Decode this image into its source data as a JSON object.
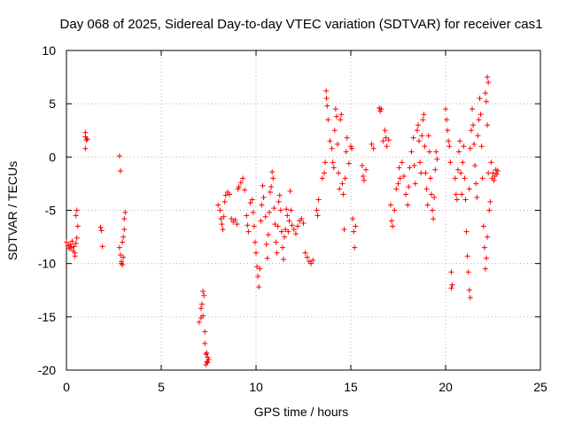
{
  "chart_data": {
    "type": "scatter",
    "title": "Day 068 of 2025, Sidereal Day-to-day VTEC variation (SDTVAR) for receiver cas1",
    "xlabel": "GPS time / hours",
    "ylabel": "SDTVAR / TECUs",
    "xlim": [
      0,
      25
    ],
    "ylim": [
      -20,
      10
    ],
    "xticks": [
      0,
      5,
      10,
      15,
      20,
      25
    ],
    "yticks": [
      -20,
      -15,
      -10,
      -5,
      0,
      5,
      10
    ],
    "grid": true,
    "marker": "+",
    "marker_color": "#ff0000",
    "series": [
      {
        "name": "cas1",
        "points": [
          [
            0.0,
            -8.0
          ],
          [
            0.1,
            -8.3
          ],
          [
            0.15,
            -8.6
          ],
          [
            0.2,
            -8.2
          ],
          [
            0.25,
            -8.5
          ],
          [
            0.3,
            -7.9
          ],
          [
            0.35,
            -8.8
          ],
          [
            0.4,
            -8.4
          ],
          [
            0.45,
            -9.0
          ],
          [
            0.5,
            -8.1
          ],
          [
            0.55,
            -7.6
          ],
          [
            0.6,
            -6.5
          ],
          [
            0.5,
            -5.5
          ],
          [
            0.55,
            -5.0
          ],
          [
            0.45,
            -9.3
          ],
          [
            1.0,
            2.3
          ],
          [
            1.0,
            1.9
          ],
          [
            1.05,
            1.6
          ],
          [
            1.0,
            0.8
          ],
          [
            1.1,
            1.7
          ],
          [
            1.8,
            -6.6
          ],
          [
            1.85,
            -6.9
          ],
          [
            1.9,
            -8.4
          ],
          [
            2.8,
            0.1
          ],
          [
            2.85,
            -1.3
          ],
          [
            2.8,
            -8.5
          ],
          [
            2.85,
            -9.2
          ],
          [
            2.9,
            -9.8
          ],
          [
            2.95,
            -10.1
          ],
          [
            3.0,
            -9.4
          ],
          [
            2.95,
            -8.0
          ],
          [
            3.0,
            -7.5
          ],
          [
            3.05,
            -6.8
          ],
          [
            3.1,
            -5.2
          ],
          [
            3.05,
            -5.8
          ],
          [
            2.9,
            -10.0
          ],
          [
            7.0,
            -15.5
          ],
          [
            7.1,
            -14.2
          ],
          [
            7.15,
            -13.8
          ],
          [
            7.2,
            -12.6
          ],
          [
            7.25,
            -13.0
          ],
          [
            7.2,
            -14.9
          ],
          [
            7.1,
            -15.1
          ],
          [
            7.3,
            -16.4
          ],
          [
            7.3,
            -17.5
          ],
          [
            7.35,
            -18.5
          ],
          [
            7.4,
            -19.2
          ],
          [
            7.45,
            -18.8
          ],
          [
            7.5,
            -19.0
          ],
          [
            7.4,
            -18.4
          ],
          [
            7.35,
            -19.5
          ],
          [
            7.45,
            -19.3
          ],
          [
            8.0,
            -4.5
          ],
          [
            8.1,
            -5.0
          ],
          [
            8.15,
            -5.8
          ],
          [
            8.2,
            -6.3
          ],
          [
            8.25,
            -6.8
          ],
          [
            8.3,
            -5.6
          ],
          [
            8.35,
            -4.2
          ],
          [
            8.4,
            -3.6
          ],
          [
            8.5,
            -3.3
          ],
          [
            8.6,
            -3.5
          ],
          [
            8.7,
            -5.8
          ],
          [
            8.8,
            -6.1
          ],
          [
            8.9,
            -5.9
          ],
          [
            9.0,
            -6.3
          ],
          [
            9.05,
            -3.0
          ],
          [
            9.1,
            -2.8
          ],
          [
            9.2,
            -2.4
          ],
          [
            9.3,
            -2.0
          ],
          [
            9.4,
            -3.1
          ],
          [
            9.5,
            -5.5
          ],
          [
            9.55,
            -6.4
          ],
          [
            9.6,
            -7.0
          ],
          [
            9.7,
            -4.3
          ],
          [
            9.8,
            -4.0
          ],
          [
            9.85,
            -5.2
          ],
          [
            9.9,
            -6.5
          ],
          [
            9.95,
            -8.0
          ],
          [
            10.0,
            -9.0
          ],
          [
            10.05,
            -10.3
          ],
          [
            10.1,
            -11.2
          ],
          [
            10.15,
            -12.2
          ],
          [
            10.2,
            -10.5
          ],
          [
            10.25,
            -6.0
          ],
          [
            10.3,
            -4.5
          ],
          [
            10.35,
            -2.7
          ],
          [
            10.4,
            -3.8
          ],
          [
            10.5,
            -5.6
          ],
          [
            10.55,
            -8.2
          ],
          [
            10.6,
            -9.5
          ],
          [
            10.65,
            -7.3
          ],
          [
            10.7,
            -5.2
          ],
          [
            10.75,
            -3.3
          ],
          [
            10.8,
            -2.8
          ],
          [
            10.85,
            -1.4
          ],
          [
            10.9,
            -2.0
          ],
          [
            10.95,
            -4.8
          ],
          [
            11.0,
            -6.3
          ],
          [
            11.05,
            -8.0
          ],
          [
            11.1,
            -9.0
          ],
          [
            11.15,
            -6.5
          ],
          [
            11.2,
            -4.2
          ],
          [
            11.25,
            -3.6
          ],
          [
            11.3,
            -5.0
          ],
          [
            11.35,
            -7.0
          ],
          [
            11.4,
            -8.5
          ],
          [
            11.45,
            -9.6
          ],
          [
            11.5,
            -7.5
          ],
          [
            11.55,
            -6.8
          ],
          [
            11.6,
            -4.9
          ],
          [
            11.65,
            -5.5
          ],
          [
            11.7,
            -7.0
          ],
          [
            11.75,
            -6.0
          ],
          [
            11.8,
            -3.2
          ],
          [
            11.85,
            -5.0
          ],
          [
            11.9,
            -6.4
          ],
          [
            12.0,
            -6.8
          ],
          [
            12.1,
            -7.2
          ],
          [
            12.2,
            -6.5
          ],
          [
            12.3,
            -6.0
          ],
          [
            12.4,
            -5.8
          ],
          [
            12.5,
            -6.2
          ],
          [
            12.6,
            -9.0
          ],
          [
            12.7,
            -9.4
          ],
          [
            12.8,
            -9.8
          ],
          [
            12.9,
            -10.0
          ],
          [
            13.0,
            -9.7
          ],
          [
            13.2,
            -5.0
          ],
          [
            13.25,
            -5.5
          ],
          [
            13.3,
            -4.0
          ],
          [
            13.5,
            -2.0
          ],
          [
            13.6,
            -1.5
          ],
          [
            13.65,
            -0.5
          ],
          [
            13.7,
            6.2
          ],
          [
            13.72,
            5.5
          ],
          [
            13.75,
            4.8
          ],
          [
            13.8,
            3.5
          ],
          [
            13.9,
            1.5
          ],
          [
            14.0,
            0.8
          ],
          [
            14.05,
            -0.5
          ],
          [
            14.1,
            -1.0
          ],
          [
            14.15,
            2.5
          ],
          [
            14.2,
            4.5
          ],
          [
            14.25,
            3.8
          ],
          [
            14.3,
            1.2
          ],
          [
            14.35,
            -1.5
          ],
          [
            14.4,
            -3.0
          ],
          [
            14.45,
            3.5
          ],
          [
            14.5,
            4.0
          ],
          [
            14.55,
            -2.5
          ],
          [
            14.6,
            -3.5
          ],
          [
            14.65,
            -6.8
          ],
          [
            14.7,
            -2.0
          ],
          [
            14.75,
            0.5
          ],
          [
            14.8,
            1.8
          ],
          [
            14.9,
            -0.6
          ],
          [
            15.0,
            1.0
          ],
          [
            15.05,
            0.8
          ],
          [
            15.1,
            -5.8
          ],
          [
            15.15,
            -7.0
          ],
          [
            15.2,
            -8.5
          ],
          [
            15.25,
            -6.5
          ],
          [
            15.6,
            -0.8
          ],
          [
            15.65,
            -1.8
          ],
          [
            15.7,
            -2.2
          ],
          [
            15.8,
            -1.2
          ],
          [
            16.1,
            1.2
          ],
          [
            16.2,
            0.8
          ],
          [
            16.5,
            4.6
          ],
          [
            16.55,
            4.3
          ],
          [
            16.6,
            4.5
          ],
          [
            16.7,
            1.5
          ],
          [
            16.8,
            2.5
          ],
          [
            16.85,
            1.8
          ],
          [
            16.9,
            1.0
          ],
          [
            17.0,
            1.6
          ],
          [
            17.1,
            -4.5
          ],
          [
            17.15,
            -6.0
          ],
          [
            17.2,
            -6.5
          ],
          [
            17.3,
            -5.0
          ],
          [
            17.4,
            -3.0
          ],
          [
            17.5,
            -2.5
          ],
          [
            17.55,
            -1.0
          ],
          [
            17.6,
            -2.0
          ],
          [
            17.7,
            -0.5
          ],
          [
            17.8,
            -1.8
          ],
          [
            17.9,
            -3.5
          ],
          [
            18.0,
            -4.5
          ],
          [
            18.05,
            -2.8
          ],
          [
            18.1,
            -1.0
          ],
          [
            18.2,
            0.5
          ],
          [
            18.3,
            1.8
          ],
          [
            18.35,
            -0.8
          ],
          [
            18.4,
            -2.5
          ],
          [
            18.5,
            2.5
          ],
          [
            18.55,
            3.0
          ],
          [
            18.6,
            1.5
          ],
          [
            18.65,
            -0.5
          ],
          [
            18.7,
            -1.5
          ],
          [
            18.75,
            2.0
          ],
          [
            18.8,
            3.5
          ],
          [
            18.85,
            4.0
          ],
          [
            18.9,
            1.0
          ],
          [
            18.95,
            -1.5
          ],
          [
            19.0,
            -3.0
          ],
          [
            19.05,
            -4.5
          ],
          [
            19.1,
            2.0
          ],
          [
            19.15,
            0.5
          ],
          [
            19.2,
            -2.0
          ],
          [
            19.25,
            -3.5
          ],
          [
            19.3,
            -5.0
          ],
          [
            19.35,
            -5.8
          ],
          [
            19.4,
            -3.8
          ],
          [
            19.45,
            -1.2
          ],
          [
            19.5,
            0.5
          ],
          [
            19.55,
            -0.2
          ],
          [
            20.0,
            4.5
          ],
          [
            20.05,
            3.5
          ],
          [
            20.1,
            2.5
          ],
          [
            20.15,
            1.5
          ],
          [
            20.2,
            1.0
          ],
          [
            20.25,
            -0.5
          ],
          [
            20.3,
            -10.8
          ],
          [
            20.35,
            -12.0
          ],
          [
            20.3,
            -12.3
          ],
          [
            20.5,
            -2.0
          ],
          [
            20.55,
            -3.5
          ],
          [
            20.6,
            -4.0
          ],
          [
            20.65,
            -1.2
          ],
          [
            20.7,
            0.5
          ],
          [
            20.75,
            1.5
          ],
          [
            20.8,
            -1.5
          ],
          [
            20.85,
            -3.5
          ],
          [
            20.9,
            -0.5
          ],
          [
            20.95,
            1.0
          ],
          [
            21.0,
            -2.0
          ],
          [
            21.05,
            -4.0
          ],
          [
            21.1,
            -7.0
          ],
          [
            21.15,
            -9.3
          ],
          [
            21.2,
            -10.8
          ],
          [
            21.25,
            -12.5
          ],
          [
            21.3,
            -13.2
          ],
          [
            21.25,
            -3.0
          ],
          [
            21.3,
            0.8
          ],
          [
            21.35,
            2.5
          ],
          [
            21.4,
            4.5
          ],
          [
            21.45,
            3.0
          ],
          [
            21.5,
            1.2
          ],
          [
            21.55,
            -0.8
          ],
          [
            21.6,
            -2.5
          ],
          [
            21.65,
            -3.8
          ],
          [
            21.7,
            2.0
          ],
          [
            21.75,
            3.5
          ],
          [
            21.8,
            5.5
          ],
          [
            21.85,
            4.0
          ],
          [
            21.9,
            1.0
          ],
          [
            21.95,
            -2.0
          ],
          [
            22.0,
            -6.5
          ],
          [
            22.05,
            -8.5
          ],
          [
            22.1,
            -10.5
          ],
          [
            22.15,
            -9.5
          ],
          [
            22.2,
            -7.5
          ],
          [
            22.1,
            6.0
          ],
          [
            22.15,
            5.2
          ],
          [
            22.2,
            7.5
          ],
          [
            22.25,
            7.0
          ],
          [
            22.2,
            3.0
          ],
          [
            22.25,
            -1.5
          ],
          [
            22.3,
            -5.0
          ],
          [
            22.35,
            -4.2
          ],
          [
            22.4,
            -0.5
          ],
          [
            22.45,
            -2.0
          ],
          [
            22.5,
            -1.5
          ],
          [
            22.55,
            -2.2
          ],
          [
            22.6,
            -1.8
          ],
          [
            22.65,
            -1.2
          ],
          [
            22.7,
            -1.6
          ],
          [
            22.75,
            -1.3
          ]
        ]
      }
    ]
  }
}
